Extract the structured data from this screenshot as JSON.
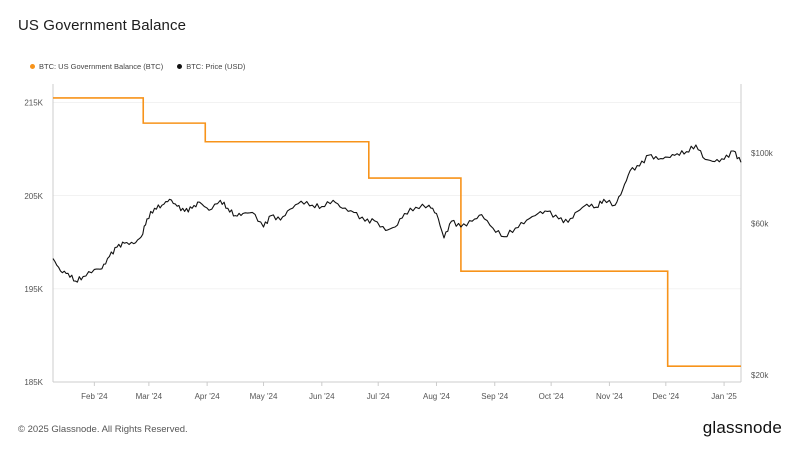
{
  "title": "US Government Balance",
  "legend": [
    {
      "label": "BTC: US Government Balance (BTC)",
      "color": "#f7931a"
    },
    {
      "label": "BTC: Price (USD)",
      "color": "#111111"
    }
  ],
  "footer": {
    "copyright": "© 2025 Glassnode. All Rights Reserved.",
    "brand": "glassnode"
  },
  "colors": {
    "balance": "#f7931a",
    "price": "#111111",
    "grid": "#e6e6e6",
    "axis": "#cccccc"
  },
  "chart_data": {
    "type": "line",
    "title": "US Government Balance",
    "x_tick_labels": [
      "Feb '24",
      "Mar '24",
      "Apr '24",
      "May '24",
      "Jun '24",
      "Jul '24",
      "Aug '24",
      "Sep '24",
      "Oct '24",
      "Nov '24",
      "Dec '24",
      "Jan '25"
    ],
    "x_tick_dates": [
      "2024-02-01",
      "2024-03-01",
      "2024-04-01",
      "2024-05-01",
      "2024-06-01",
      "2024-07-01",
      "2024-08-01",
      "2024-09-01",
      "2024-10-01",
      "2024-11-01",
      "2024-12-01",
      "2025-01-01"
    ],
    "xlim": [
      "2024-01-10",
      "2025-01-10"
    ],
    "left_axis": {
      "ylim": [
        185000,
        217000
      ],
      "ticks": [
        185000,
        195000,
        205000,
        215000
      ],
      "tick_labels": [
        "185K",
        "195K",
        "205K",
        "215K"
      ]
    },
    "right_axis": {
      "scale": "log",
      "ylim": [
        19000,
        165000
      ],
      "ticks": [
        20000,
        60000,
        100000
      ],
      "tick_labels": [
        "$20k",
        "$60k",
        "$100k"
      ]
    },
    "series": [
      {
        "name": "BTC: US Government Balance (BTC)",
        "axis": "left",
        "step": true,
        "x": [
          "2024-01-10",
          "2024-02-27",
          "2024-03-31",
          "2024-06-26",
          "2024-08-14",
          "2024-12-02",
          "2025-01-10"
        ],
        "y": [
          215500,
          212800,
          210800,
          206900,
          196900,
          186700,
          186700
        ]
      },
      {
        "name": "BTC: Price (USD)",
        "axis": "right",
        "x": [
          "2024-01-10",
          "2024-01-14",
          "2024-01-18",
          "2024-01-22",
          "2024-01-26",
          "2024-02-01",
          "2024-02-05",
          "2024-02-09",
          "2024-02-13",
          "2024-02-17",
          "2024-02-22",
          "2024-02-26",
          "2024-02-29",
          "2024-03-04",
          "2024-03-08",
          "2024-03-12",
          "2024-03-16",
          "2024-03-20",
          "2024-03-24",
          "2024-03-28",
          "2024-04-02",
          "2024-04-08",
          "2024-04-12",
          "2024-04-16",
          "2024-04-20",
          "2024-04-25",
          "2024-05-01",
          "2024-05-05",
          "2024-05-10",
          "2024-05-15",
          "2024-05-21",
          "2024-05-27",
          "2024-06-01",
          "2024-06-07",
          "2024-06-12",
          "2024-06-18",
          "2024-06-24",
          "2024-06-29",
          "2024-07-05",
          "2024-07-10",
          "2024-07-15",
          "2024-07-21",
          "2024-07-28",
          "2024-08-01",
          "2024-08-05",
          "2024-08-09",
          "2024-08-14",
          "2024-08-20",
          "2024-08-25",
          "2024-08-31",
          "2024-09-06",
          "2024-09-12",
          "2024-09-18",
          "2024-09-24",
          "2024-09-29",
          "2024-10-05",
          "2024-10-10",
          "2024-10-15",
          "2024-10-20",
          "2024-10-25",
          "2024-10-29",
          "2024-11-04",
          "2024-11-08",
          "2024-11-12",
          "2024-11-17",
          "2024-11-22",
          "2024-11-27",
          "2024-12-02",
          "2024-12-07",
          "2024-12-12",
          "2024-12-17",
          "2024-12-22",
          "2024-12-27",
          "2025-01-01",
          "2025-01-06",
          "2025-01-10"
        ],
        "y": [
          46500,
          42500,
          41800,
          39500,
          40800,
          43000,
          43200,
          47200,
          50500,
          52000,
          51800,
          54500,
          62000,
          67000,
          68500,
          71500,
          68000,
          65500,
          67000,
          70000,
          66000,
          71000,
          67000,
          63500,
          64500,
          65000,
          58500,
          63500,
          61500,
          66500,
          70500,
          68500,
          67800,
          71000,
          67000,
          65000,
          61000,
          61200,
          57000,
          58500,
          64500,
          67500,
          68500,
          64500,
          54000,
          61000,
          58500,
          61000,
          64000,
          58000,
          54500,
          58000,
          61500,
          64500,
          65500,
          62000,
          60500,
          65500,
          69000,
          67500,
          71500,
          68500,
          76500,
          88000,
          91000,
          98500,
          95500,
          97000,
          99500,
          101000,
          106000,
          95500,
          94000,
          95500,
          101500,
          93500
        ]
      }
    ]
  }
}
